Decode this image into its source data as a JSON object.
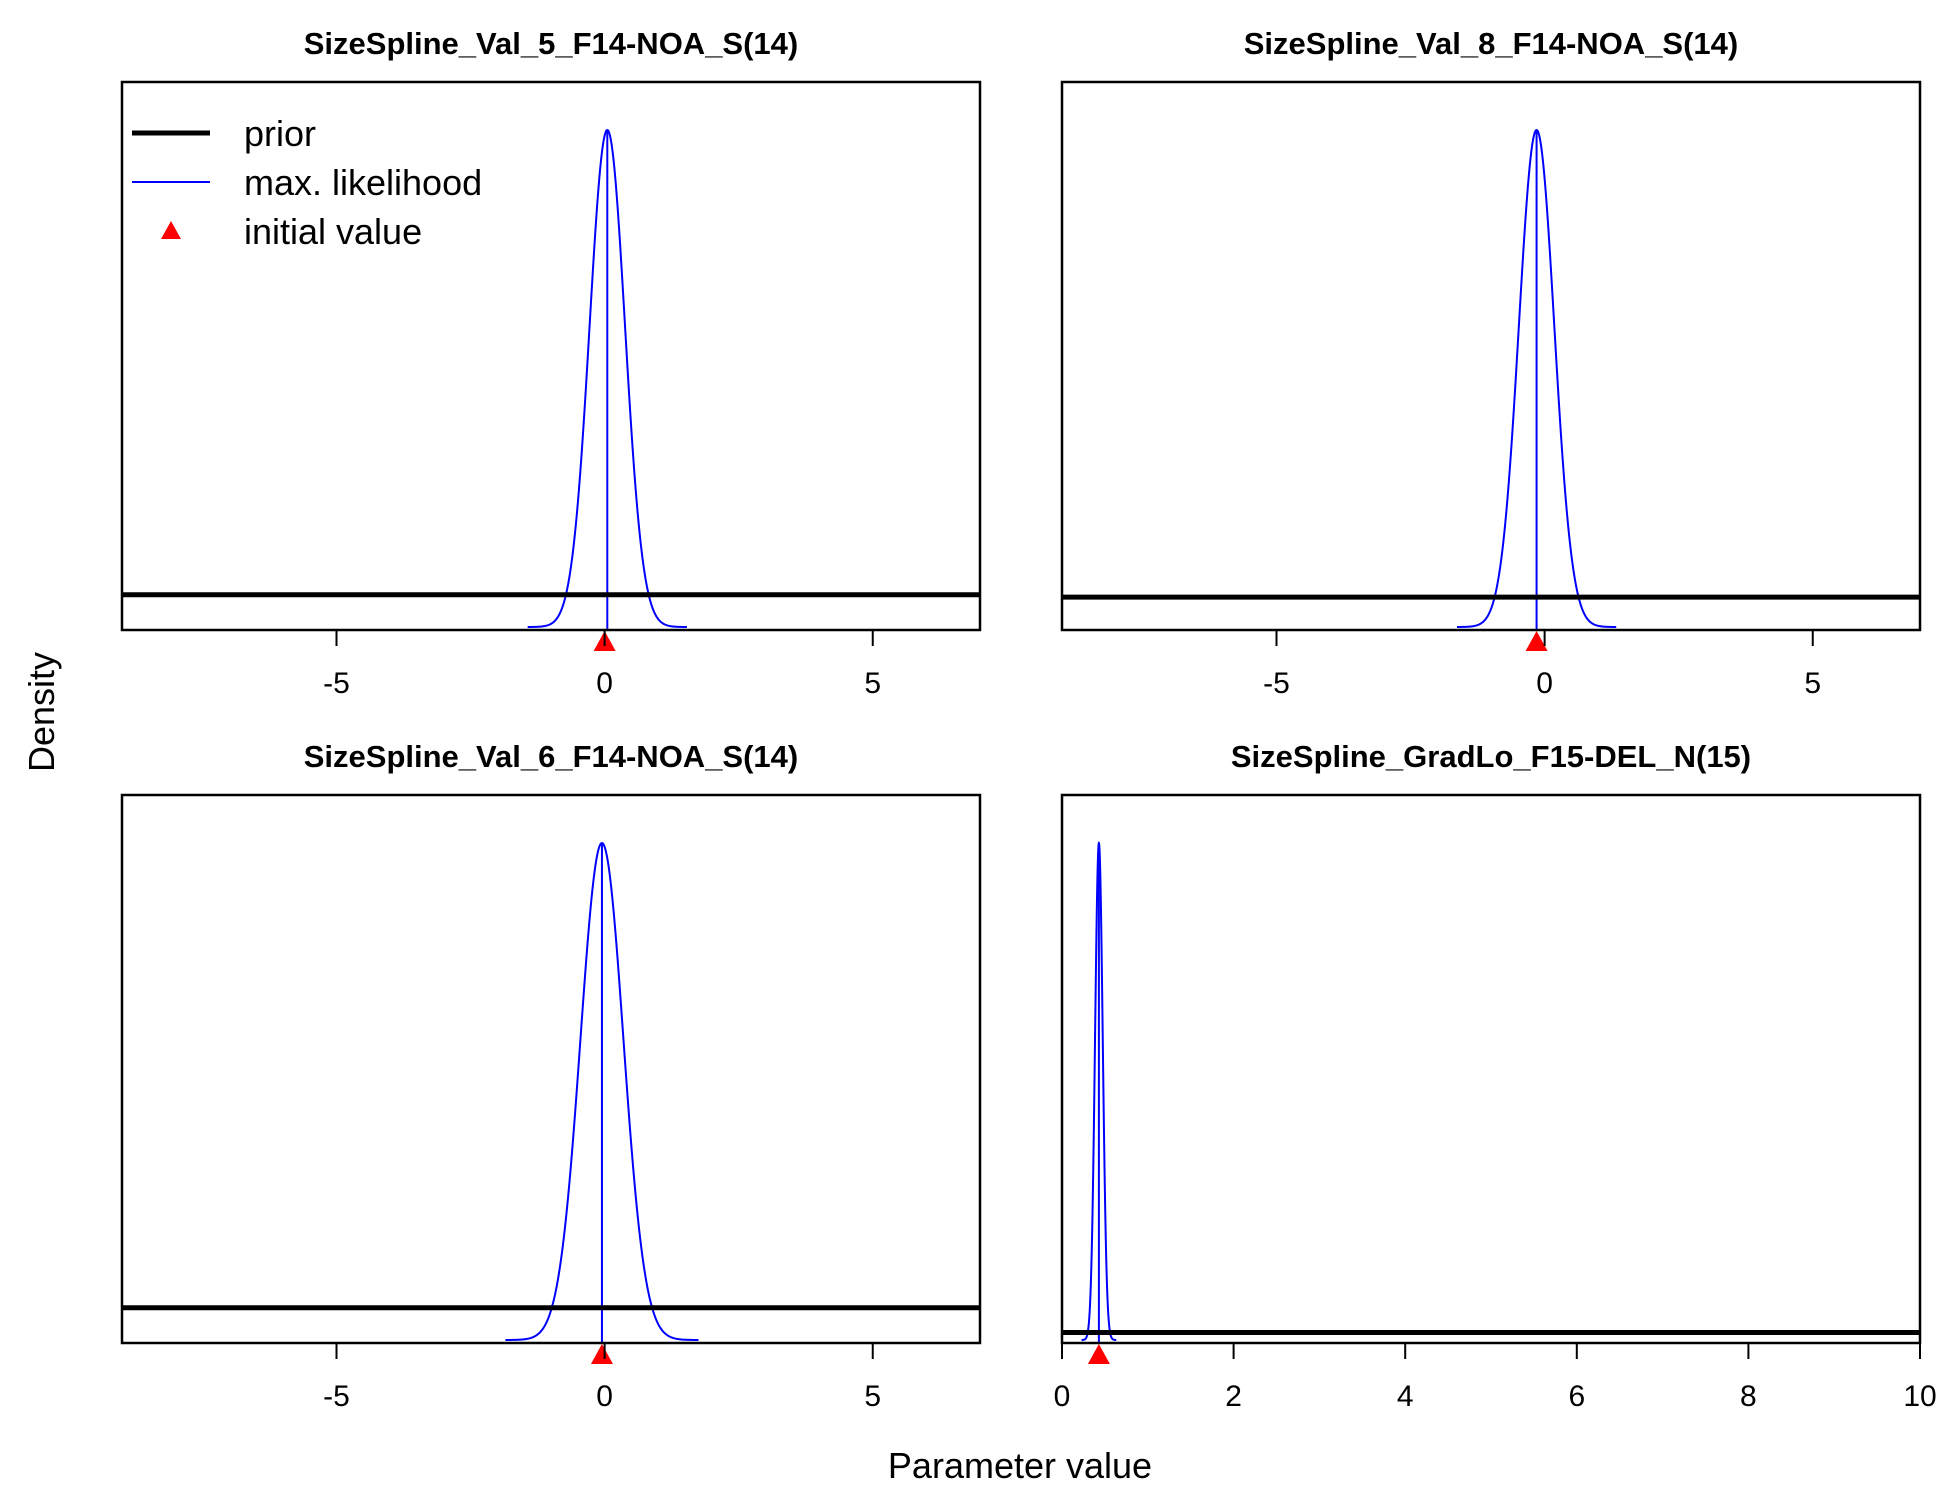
{
  "figure": {
    "xlabel": "Parameter value",
    "ylabel": "Density"
  },
  "legend": {
    "placement": "top-left of first panel",
    "entries": [
      {
        "label": "prior",
        "kind": "line",
        "color": "#000000"
      },
      {
        "label": "max. likelihood",
        "kind": "line",
        "color": "#0000ff"
      },
      {
        "label": "initial value",
        "kind": "triangle",
        "color": "#ff0000"
      }
    ]
  },
  "colors": {
    "prior": "#000000",
    "mle": "#0000ff",
    "initial": "#ff0000"
  },
  "chart_data": [
    {
      "type": "line",
      "title": "SizeSpline_Val_5_F14-NOA_S(14)",
      "xlim": [
        -9,
        7
      ],
      "xticks": [
        -5,
        0,
        5
      ],
      "prior_level": 0.065,
      "mle": {
        "mean": 0.05,
        "sd": 0.33
      },
      "initial_value": 0
    },
    {
      "type": "line",
      "title": "SizeSpline_Val_8_F14-NOA_S(14)",
      "xlim": [
        -9,
        7
      ],
      "xticks": [
        -5,
        0,
        5
      ],
      "prior_level": 0.06,
      "mle": {
        "mean": -0.15,
        "sd": 0.33
      },
      "initial_value": -0.15
    },
    {
      "type": "line",
      "title": "SizeSpline_Val_6_F14-NOA_S(14)",
      "xlim": [
        -9,
        7
      ],
      "xticks": [
        -5,
        0,
        5
      ],
      "prior_level": 0.065,
      "mle": {
        "mean": -0.05,
        "sd": 0.4
      },
      "initial_value": -0.05
    },
    {
      "type": "line",
      "title": "SizeSpline_GradLo_F15-DEL_N(15)",
      "xlim": [
        0,
        10
      ],
      "xticks": [
        0,
        2,
        4,
        6,
        8,
        10
      ],
      "prior_level": 0.015,
      "mle": {
        "mean": 0.43,
        "sd": 0.045
      },
      "initial_value": 0.43
    }
  ]
}
